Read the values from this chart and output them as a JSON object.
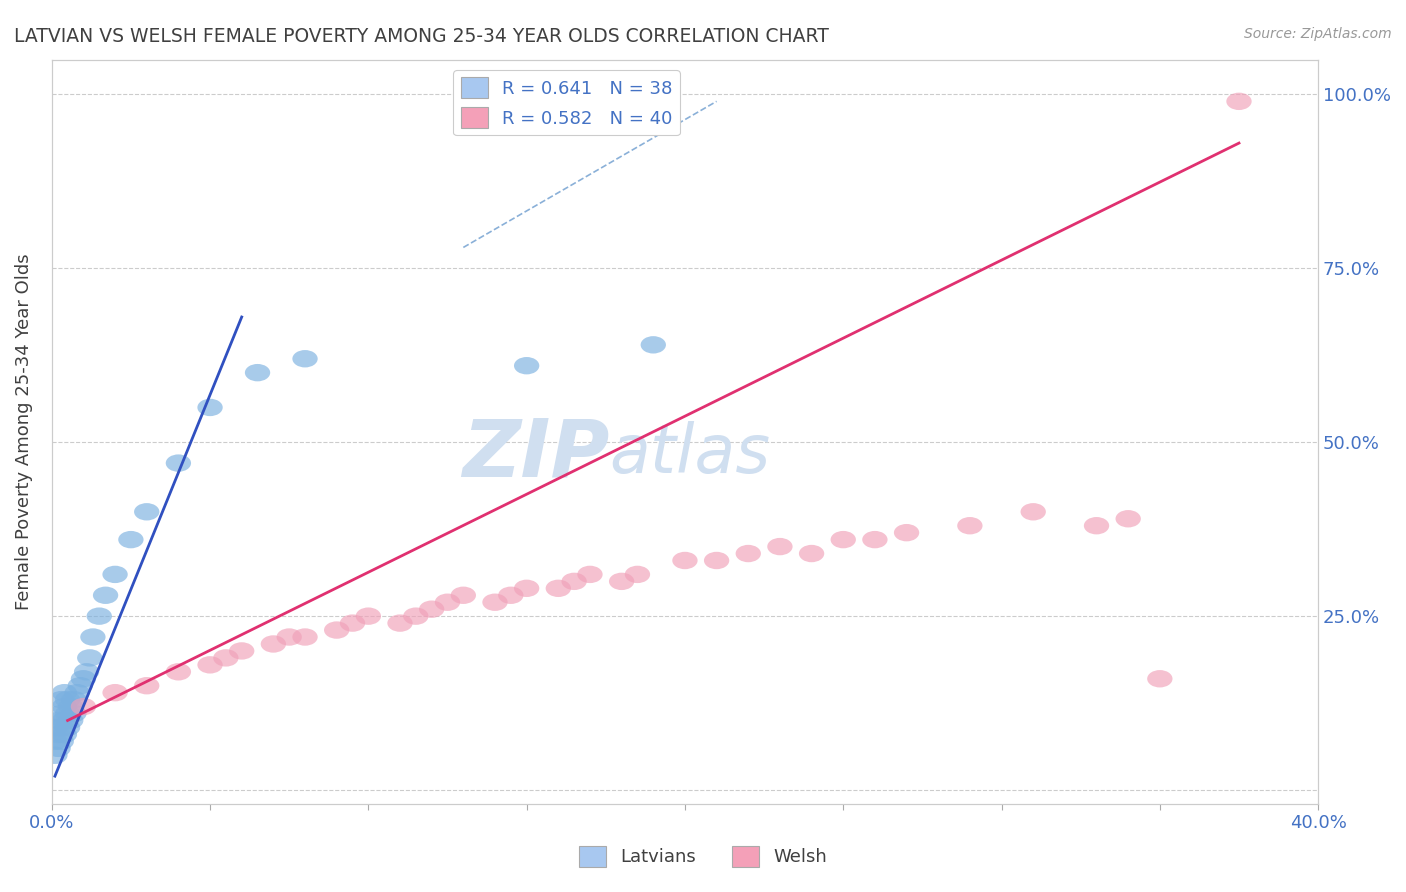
{
  "title": "LATVIAN VS WELSH FEMALE POVERTY AMONG 25-34 YEAR OLDS CORRELATION CHART",
  "source_text": "Source: ZipAtlas.com",
  "ylabel": "Female Poverty Among 25-34 Year Olds",
  "xlim": [
    0.0,
    0.4
  ],
  "ylim": [
    -0.02,
    1.05
  ],
  "xticks": [
    0.0,
    0.05,
    0.1,
    0.15,
    0.2,
    0.25,
    0.3,
    0.35,
    0.4
  ],
  "xticklabels": [
    "0.0%",
    "",
    "",
    "",
    "",
    "",
    "",
    "",
    "40.0%"
  ],
  "yticks": [
    0.0,
    0.25,
    0.5,
    0.75,
    1.0
  ],
  "yticklabels": [
    "",
    "25.0%",
    "50.0%",
    "75.0%",
    "100.0%"
  ],
  "legend_latvian": "R = 0.641   N = 38",
  "legend_welsh": "R = 0.582   N = 40",
  "legend_color_latvian": "#a8c8f0",
  "legend_color_welsh": "#f4a0b8",
  "blue_color": "#7ab0e0",
  "pink_color": "#f0a0b8",
  "blue_line_color": "#3050c0",
  "pink_line_color": "#e03070",
  "axis_text_color": "#4472c4",
  "watermark_color": "#d0dff0",
  "latvian_x": [
    0.001,
    0.001,
    0.001,
    0.002,
    0.002,
    0.002,
    0.003,
    0.003,
    0.003,
    0.003,
    0.004,
    0.004,
    0.004,
    0.004,
    0.005,
    0.005,
    0.005,
    0.006,
    0.006,
    0.007,
    0.007,
    0.008,
    0.009,
    0.01,
    0.011,
    0.012,
    0.013,
    0.015,
    0.017,
    0.02,
    0.025,
    0.03,
    0.04,
    0.05,
    0.065,
    0.08,
    0.15,
    0.19
  ],
  "latvian_y": [
    0.05,
    0.07,
    0.09,
    0.06,
    0.08,
    0.1,
    0.07,
    0.09,
    0.11,
    0.13,
    0.08,
    0.1,
    0.12,
    0.14,
    0.09,
    0.11,
    0.13,
    0.1,
    0.12,
    0.11,
    0.13,
    0.14,
    0.15,
    0.16,
    0.17,
    0.19,
    0.22,
    0.25,
    0.28,
    0.31,
    0.36,
    0.4,
    0.47,
    0.55,
    0.6,
    0.62,
    0.61,
    0.64
  ],
  "welsh_x": [
    0.01,
    0.02,
    0.03,
    0.04,
    0.05,
    0.055,
    0.06,
    0.07,
    0.075,
    0.08,
    0.09,
    0.095,
    0.1,
    0.11,
    0.115,
    0.12,
    0.125,
    0.13,
    0.14,
    0.145,
    0.15,
    0.16,
    0.165,
    0.17,
    0.18,
    0.185,
    0.2,
    0.21,
    0.22,
    0.23,
    0.24,
    0.25,
    0.26,
    0.27,
    0.29,
    0.31,
    0.33,
    0.34,
    0.35,
    0.375
  ],
  "welsh_y": [
    0.12,
    0.14,
    0.15,
    0.17,
    0.18,
    0.19,
    0.2,
    0.21,
    0.22,
    0.22,
    0.23,
    0.24,
    0.25,
    0.24,
    0.25,
    0.26,
    0.27,
    0.28,
    0.27,
    0.28,
    0.29,
    0.29,
    0.3,
    0.31,
    0.3,
    0.31,
    0.33,
    0.33,
    0.34,
    0.35,
    0.34,
    0.36,
    0.36,
    0.37,
    0.38,
    0.4,
    0.38,
    0.39,
    0.16,
    0.99
  ],
  "blue_line_x": [
    0.001,
    0.06
  ],
  "blue_line_y": [
    0.02,
    0.68
  ],
  "pink_line_x": [
    0.005,
    0.375
  ],
  "pink_line_y": [
    0.1,
    0.93
  ],
  "dashed_line_x": [
    0.13,
    0.21
  ],
  "dashed_line_y": [
    0.78,
    0.99
  ]
}
